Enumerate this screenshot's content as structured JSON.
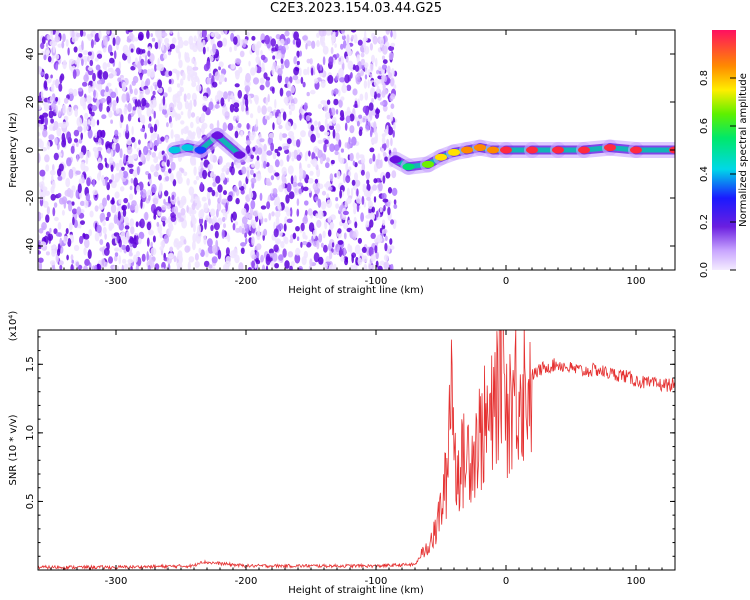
{
  "title": "C2E3.2023.154.03.44.G25",
  "chart_data": [
    {
      "type": "heatmap",
      "xlabel": "Height of straight line (km)",
      "ylabel": "Frequency (Hz)",
      "xlim": [
        -360,
        130
      ],
      "ylim": [
        -50,
        50
      ],
      "x_ticks": [
        -300,
        -200,
        -100,
        0,
        100
      ],
      "y_ticks": [
        -40,
        -20,
        0,
        20,
        40
      ],
      "colorbar": {
        "label": "Normalized spectral amplitude",
        "range": [
          0,
          1
        ],
        "ticks": [
          "0.0",
          "0.2",
          "0.4",
          "0.6",
          "0.8"
        ]
      },
      "noise_region_x": [
        -360,
        -85
      ],
      "signal_track": [
        {
          "x": -255,
          "y": 0,
          "amp": 0.45
        },
        {
          "x": -245,
          "y": 1,
          "amp": 0.5
        },
        {
          "x": -235,
          "y": 0,
          "amp": 0.4
        },
        {
          "x": -222,
          "y": 6,
          "amp": 0.3
        },
        {
          "x": -205,
          "y": -2,
          "amp": 0.3
        },
        {
          "x": -85,
          "y": -4,
          "amp": 0.3
        },
        {
          "x": -75,
          "y": -7,
          "amp": 0.6
        },
        {
          "x": -60,
          "y": -6,
          "amp": 0.7
        },
        {
          "x": -50,
          "y": -3,
          "amp": 0.8
        },
        {
          "x": -40,
          "y": -1,
          "amp": 0.8
        },
        {
          "x": -30,
          "y": 0,
          "amp": 0.85
        },
        {
          "x": -20,
          "y": 1,
          "amp": 0.9
        },
        {
          "x": -10,
          "y": 0,
          "amp": 0.9
        },
        {
          "x": 0,
          "y": 0,
          "amp": 0.95
        },
        {
          "x": 20,
          "y": 0,
          "amp": 0.95
        },
        {
          "x": 40,
          "y": 0,
          "amp": 0.95
        },
        {
          "x": 60,
          "y": 0,
          "amp": 0.95
        },
        {
          "x": 80,
          "y": 1,
          "amp": 0.97
        },
        {
          "x": 100,
          "y": 0,
          "amp": 0.97
        },
        {
          "x": 130,
          "y": 0,
          "amp": 0.95
        }
      ]
    },
    {
      "type": "line",
      "xlabel": "Height of straight line (km)",
      "ylabel": "SNR (10 * v/v)",
      "multiplier": "(x10⁴)",
      "xlim": [
        -360,
        130
      ],
      "ylim": [
        0,
        1.75
      ],
      "x_ticks": [
        -300,
        -200,
        -100,
        0,
        100
      ],
      "y_ticks": [
        "0.5",
        "1.0",
        "1.5"
      ],
      "line_color": "#e53030",
      "series": [
        {
          "x": [
            -360,
            -300,
            -240,
            -235,
            -200,
            -150,
            -100,
            -70,
            -62,
            -58,
            -55,
            -50,
            -45,
            -42,
            -40,
            -35,
            -30,
            -25,
            -20,
            -10,
            -2,
            0,
            5,
            10,
            15,
            20,
            30,
            40,
            50,
            60,
            70,
            80,
            90,
            100,
            110,
            120,
            130
          ],
          "values": [
            0.02,
            0.02,
            0.03,
            0.06,
            0.03,
            0.03,
            0.03,
            0.04,
            0.15,
            0.22,
            0.25,
            0.45,
            0.7,
            1.68,
            0.8,
            0.75,
            0.85,
            0.9,
            1.0,
            1.1,
            1.75,
            1.15,
            1.3,
            1.3,
            1.38,
            1.42,
            1.48,
            1.5,
            1.47,
            1.45,
            1.46,
            1.43,
            1.42,
            1.38,
            1.36,
            1.35,
            1.35
          ]
        }
      ]
    }
  ]
}
